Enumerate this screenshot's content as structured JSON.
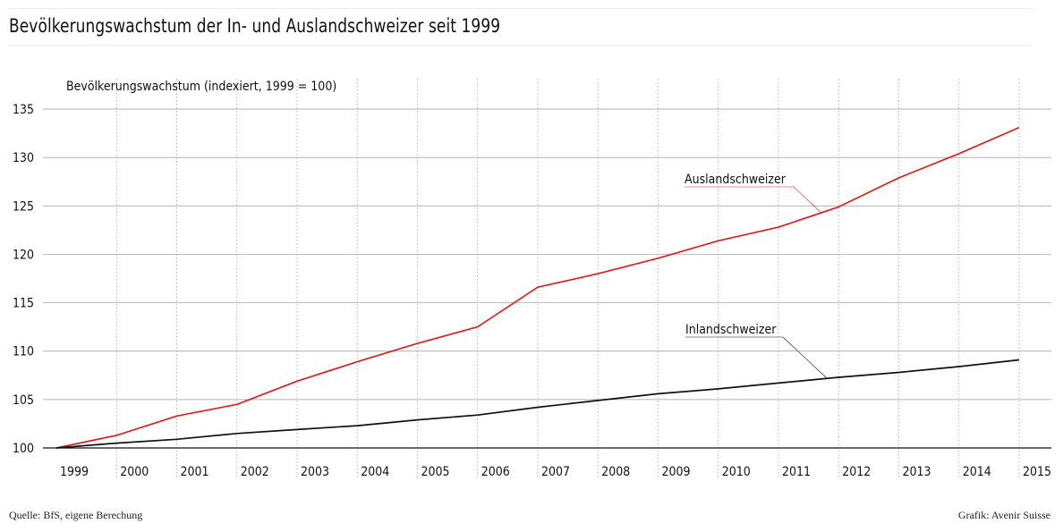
{
  "header": {
    "title": "Bevölkerungswachstum der In- und Auslandschweizer seit 1999"
  },
  "footer": {
    "source": "Quelle: BfS, eigene Berechung",
    "credit": "Grafik: Avenir Suisse"
  },
  "chart_data": {
    "type": "line",
    "title": "Bevölkerungswachstum der In- und Auslandschweizer seit 1999",
    "ylabel": "Bevölkerungswachstum (indexiert, 1999 = 100)",
    "xlabel": "",
    "x": [
      "1999",
      "2000",
      "2001",
      "2002",
      "2003",
      "2004",
      "2005",
      "2006",
      "2007",
      "2008",
      "2009",
      "2010",
      "2011",
      "2012",
      "2013",
      "2014",
      "2015"
    ],
    "ylim": [
      100,
      135
    ],
    "yticks": [
      100,
      105,
      110,
      115,
      120,
      125,
      130,
      135
    ],
    "grid": true,
    "series": [
      {
        "name": "Auslandschweizer",
        "color": "#e01e1e",
        "values": [
          100,
          101.3,
          103.3,
          104.5,
          106.9,
          108.9,
          110.8,
          112.5,
          116.6,
          118.0,
          119.6,
          121.4,
          122.8,
          124.9,
          127.9,
          130.4,
          133.1
        ]
      },
      {
        "name": "Inlandschweizer",
        "color": "#111111",
        "values": [
          100,
          100.5,
          100.9,
          101.5,
          101.9,
          102.3,
          102.9,
          103.4,
          104.2,
          104.9,
          105.6,
          106.1,
          106.7,
          107.3,
          107.8,
          108.4,
          109.1
        ]
      }
    ]
  }
}
